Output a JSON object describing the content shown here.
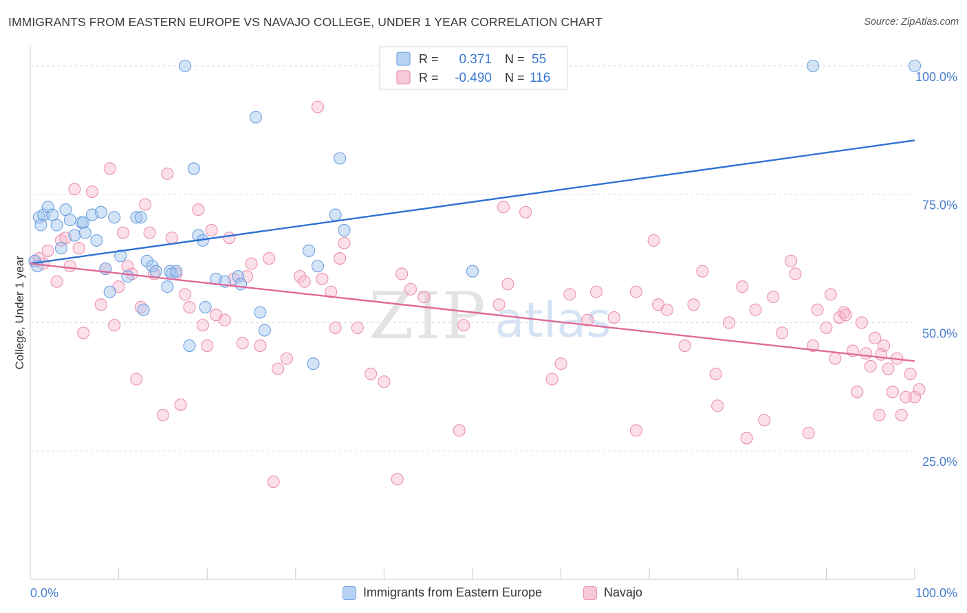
{
  "title": "IMMIGRANTS FROM EASTERN EUROPE VS NAVAJO COLLEGE, UNDER 1 YEAR CORRELATION CHART",
  "source": "Source: ZipAtlas.com",
  "watermark": {
    "zip": "ZIP",
    "atlas": "atlas"
  },
  "legend_box": {
    "rows": [
      {
        "r_label": "R =",
        "r_value": "0.371",
        "n_label": "N =",
        "n_value": "55"
      },
      {
        "r_label": "R =",
        "r_value": "-0.490",
        "n_label": "N = ",
        "n_value": "116"
      }
    ]
  },
  "chart_data": {
    "type": "scatter",
    "title": "IMMIGRANTS FROM EASTERN EUROPE VS NAVAJO COLLEGE, UNDER 1 YEAR CORRELATION CHART",
    "xlabel": "",
    "ylabel": "College, Under 1 year",
    "xlim": [
      0,
      100
    ],
    "ylim": [
      0,
      104
    ],
    "x_tick_labels": [
      "0.0%",
      "100.0%"
    ],
    "y_tick_labels": [
      "25.0%",
      "50.0%",
      "75.0%",
      "100.0%"
    ],
    "y_ticks": [
      25,
      50,
      75,
      100
    ],
    "grid": true,
    "legend_position": "bottom",
    "colors": {
      "blue": "#6b9fe0",
      "blue_line": "#2f72d3",
      "pink": "#ec8fb0",
      "pink_line": "#e06a98",
      "axis_text": "#4a7fd0"
    },
    "series": [
      {
        "name": "Immigrants from Eastern Europe",
        "color": "#6b9fe0",
        "r": 0.371,
        "n": 55,
        "trend": {
          "x": [
            0,
            100
          ],
          "y": [
            61.5,
            85.5
          ]
        },
        "points": [
          [
            1,
            70.5
          ],
          [
            1.5,
            71
          ],
          [
            2,
            72.5
          ],
          [
            2.5,
            71
          ],
          [
            3.5,
            64.5
          ],
          [
            4,
            72
          ],
          [
            4.5,
            70
          ],
          [
            5,
            67
          ],
          [
            5.8,
            69.5
          ],
          [
            6,
            69.5
          ],
          [
            6.2,
            67.5
          ],
          [
            7,
            71
          ],
          [
            7.5,
            66
          ],
          [
            8,
            71.5
          ],
          [
            8.5,
            60.5
          ],
          [
            9,
            56
          ],
          [
            9.5,
            70.5
          ],
          [
            10.2,
            63
          ],
          [
            11,
            59
          ],
          [
            12,
            70.5
          ],
          [
            12.5,
            70.5
          ],
          [
            12.8,
            52.5
          ],
          [
            13.2,
            62
          ],
          [
            13.8,
            61
          ],
          [
            14.2,
            60
          ],
          [
            15.5,
            57
          ],
          [
            15.8,
            60
          ],
          [
            16,
            59.5
          ],
          [
            16.5,
            60
          ],
          [
            17.5,
            100
          ],
          [
            18,
            45.5
          ],
          [
            18.5,
            80
          ],
          [
            19,
            67
          ],
          [
            19.5,
            66
          ],
          [
            19.8,
            53
          ],
          [
            21,
            58.5
          ],
          [
            22,
            58
          ],
          [
            23.5,
            59
          ],
          [
            23.8,
            57.5
          ],
          [
            25.5,
            90
          ],
          [
            26,
            52
          ],
          [
            26.5,
            48.5
          ],
          [
            31.5,
            64
          ],
          [
            32,
            42
          ],
          [
            32.5,
            61
          ],
          [
            34.5,
            71
          ],
          [
            35,
            82
          ],
          [
            35.5,
            68
          ],
          [
            50,
            60
          ],
          [
            88.5,
            100
          ],
          [
            100,
            100
          ],
          [
            0.5,
            62
          ],
          [
            0.8,
            61
          ],
          [
            3,
            69
          ],
          [
            1.2,
            69
          ]
        ]
      },
      {
        "name": "Navajo",
        "color": "#ec8fb0",
        "r": -0.49,
        "n": 116,
        "trend": {
          "x": [
            0,
            100
          ],
          "y": [
            61.5,
            42.5
          ]
        },
        "points": [
          [
            0.5,
            62
          ],
          [
            1,
            62.5
          ],
          [
            1.5,
            61.5
          ],
          [
            2,
            64
          ],
          [
            3,
            58
          ],
          [
            3.5,
            66
          ],
          [
            4,
            66.5
          ],
          [
            4.5,
            61
          ],
          [
            5,
            76
          ],
          [
            5.5,
            64.5
          ],
          [
            6,
            48
          ],
          [
            7,
            75.5
          ],
          [
            8,
            53.5
          ],
          [
            8.5,
            60.5
          ],
          [
            9,
            80
          ],
          [
            9.5,
            49.5
          ],
          [
            10,
            57
          ],
          [
            10.5,
            67.5
          ],
          [
            11,
            61
          ],
          [
            11.5,
            59.5
          ],
          [
            12,
            39
          ],
          [
            12.5,
            53
          ],
          [
            13,
            73
          ],
          [
            13.5,
            67.5
          ],
          [
            14,
            59.5
          ],
          [
            15,
            32
          ],
          [
            15.5,
            79
          ],
          [
            16,
            66.5
          ],
          [
            16.5,
            59.5
          ],
          [
            17,
            34
          ],
          [
            17.5,
            55.5
          ],
          [
            18,
            53
          ],
          [
            19,
            72
          ],
          [
            19.5,
            49.5
          ],
          [
            20,
            45.5
          ],
          [
            20.5,
            68
          ],
          [
            21,
            51.5
          ],
          [
            22,
            50.5
          ],
          [
            22.5,
            66.5
          ],
          [
            23,
            58.5
          ],
          [
            24,
            46
          ],
          [
            24.5,
            59
          ],
          [
            25,
            61.5
          ],
          [
            26,
            45.5
          ],
          [
            27,
            62.5
          ],
          [
            27.5,
            19
          ],
          [
            28,
            41
          ],
          [
            29,
            43
          ],
          [
            30.5,
            59
          ],
          [
            31,
            58
          ],
          [
            32.5,
            92
          ],
          [
            33,
            58.5
          ],
          [
            34,
            56
          ],
          [
            34.5,
            49
          ],
          [
            35,
            62.5
          ],
          [
            35.5,
            65.5
          ],
          [
            37,
            49
          ],
          [
            38.5,
            40
          ],
          [
            40,
            38.5
          ],
          [
            41.5,
            19.5
          ],
          [
            42,
            59.5
          ],
          [
            43,
            56.5
          ],
          [
            44.5,
            55
          ],
          [
            48.5,
            29
          ],
          [
            49,
            49.5
          ],
          [
            53,
            53.5
          ],
          [
            53.5,
            72.5
          ],
          [
            54,
            57.5
          ],
          [
            56,
            71.5
          ],
          [
            59,
            39
          ],
          [
            60,
            42
          ],
          [
            61,
            55.5
          ],
          [
            63,
            50.5
          ],
          [
            64,
            56
          ],
          [
            66,
            51
          ],
          [
            68.5,
            56
          ],
          [
            68.5,
            29
          ],
          [
            70.5,
            66
          ],
          [
            71,
            53.5
          ],
          [
            72,
            52.5
          ],
          [
            74,
            45.5
          ],
          [
            75,
            53.5
          ],
          [
            76,
            60
          ],
          [
            77.5,
            40
          ],
          [
            79,
            50
          ],
          [
            80.5,
            57
          ],
          [
            81,
            27.5
          ],
          [
            82,
            52.5
          ],
          [
            83,
            31
          ],
          [
            84,
            55
          ],
          [
            85,
            48
          ],
          [
            86,
            62
          ],
          [
            86.5,
            59.5
          ],
          [
            88,
            28.5
          ],
          [
            88.5,
            45.5
          ],
          [
            89,
            52.5
          ],
          [
            90,
            49
          ],
          [
            90.5,
            55.5
          ],
          [
            91,
            43
          ],
          [
            91.5,
            51
          ],
          [
            92,
            52
          ],
          [
            93,
            44.5
          ],
          [
            93.5,
            36.5
          ],
          [
            94,
            50
          ],
          [
            94.5,
            44
          ],
          [
            95,
            41.5
          ],
          [
            95.5,
            47
          ],
          [
            96,
            32
          ],
          [
            96.5,
            45.5
          ],
          [
            97,
            41
          ],
          [
            97.5,
            36.5
          ],
          [
            98,
            43
          ],
          [
            98.5,
            32
          ],
          [
            99,
            35.5
          ],
          [
            99.5,
            40
          ],
          [
            100,
            35.5
          ],
          [
            100.5,
            37
          ],
          [
            96.2,
            43.8
          ],
          [
            92.2,
            51.5
          ],
          [
            77.7,
            33.8
          ]
        ]
      }
    ]
  }
}
